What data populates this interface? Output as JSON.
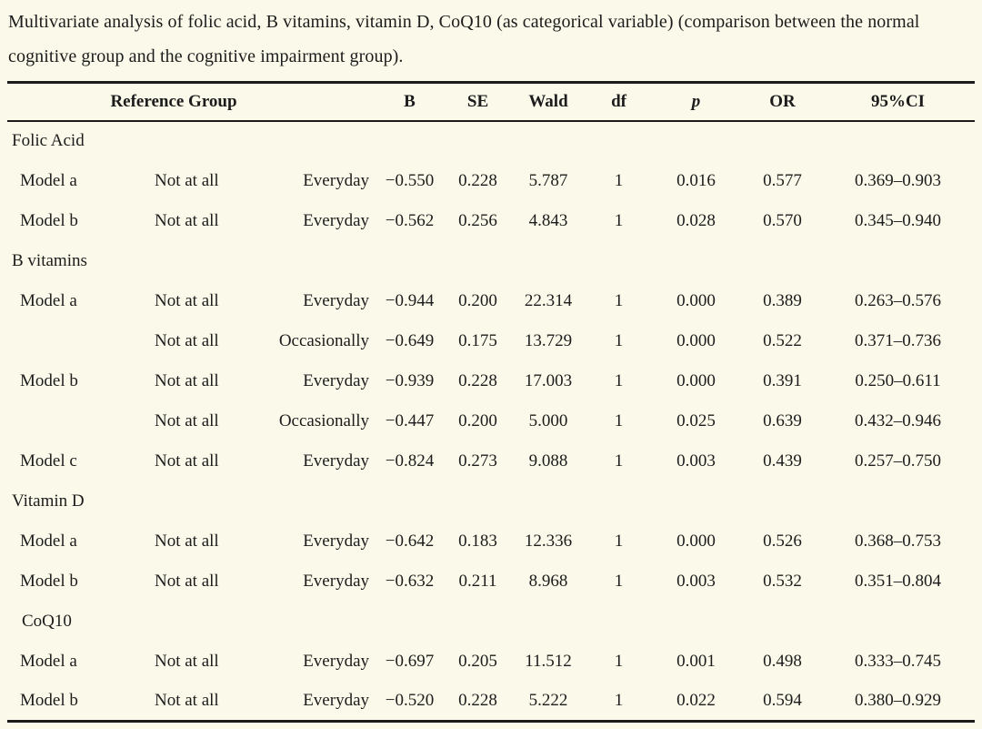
{
  "caption": "Multivariate analysis of folic acid, B vitamins, vitamin D, CoQ10 (as categorical variable) (comparison between the normal cognitive group and the cognitive impairment group).",
  "colors": {
    "page_background": "#fbf9e9",
    "text": "#1c1c1c",
    "rule": "#1c1c1c"
  },
  "table": {
    "header": {
      "reference_group": "Reference Group",
      "b": "B",
      "se": "SE",
      "wald": "Wald",
      "df": "df",
      "p": "p",
      "or": "OR",
      "ci": "95%CI"
    },
    "rows": [
      {
        "type": "section",
        "label": "Folic Acid"
      },
      {
        "type": "data",
        "label": "Model a",
        "ref": "Not at all",
        "comp": "Everyday",
        "b": "−0.550",
        "se": "0.228",
        "wald": "5.787",
        "df": "1",
        "p": "0.016",
        "or": "0.577",
        "ci": "0.369–0.903"
      },
      {
        "type": "data",
        "label": "Model b",
        "ref": "Not at all",
        "comp": "Everyday",
        "b": "−0.562",
        "se": "0.256",
        "wald": "4.843",
        "df": "1",
        "p": "0.028",
        "or": "0.570",
        "ci": "0.345–0.940"
      },
      {
        "type": "section",
        "label": "B vitamins"
      },
      {
        "type": "data",
        "label": "Model a",
        "ref": "Not at all",
        "comp": "Everyday",
        "b": "−0.944",
        "se": "0.200",
        "wald": "22.314",
        "df": "1",
        "p": "0.000",
        "or": "0.389",
        "ci": "0.263–0.576"
      },
      {
        "type": "data",
        "label": "",
        "ref": "Not at all",
        "comp": "Occasionally",
        "b": "−0.649",
        "se": "0.175",
        "wald": "13.729",
        "df": "1",
        "p": "0.000",
        "or": "0.522",
        "ci": "0.371–0.736"
      },
      {
        "type": "data",
        "label": "Model b",
        "ref": "Not at all",
        "comp": "Everyday",
        "b": "−0.939",
        "se": "0.228",
        "wald": "17.003",
        "df": "1",
        "p": "0.000",
        "or": "0.391",
        "ci": "0.250–0.611"
      },
      {
        "type": "data",
        "label": "",
        "ref": "Not at all",
        "comp": "Occasionally",
        "b": "−0.447",
        "se": "0.200",
        "wald": "5.000",
        "df": "1",
        "p": "0.025",
        "or": "0.639",
        "ci": "0.432–0.946"
      },
      {
        "type": "data",
        "label": "Model c",
        "ref": "Not at all",
        "comp": "Everyday",
        "b": "−0.824",
        "se": "0.273",
        "wald": "9.088",
        "df": "1",
        "p": "0.003",
        "or": "0.439",
        "ci": "0.257–0.750"
      },
      {
        "type": "section",
        "label": "Vitamin D"
      },
      {
        "type": "data",
        "label": "Model a",
        "ref": "Not at all",
        "comp": "Everyday",
        "b": "−0.642",
        "se": "0.183",
        "wald": "12.336",
        "df": "1",
        "p": "0.000",
        "or": "0.526",
        "ci": "0.368–0.753"
      },
      {
        "type": "data",
        "label": "Model b",
        "ref": "Not at all",
        "comp": "Everyday",
        "b": "−0.632",
        "se": "0.211",
        "wald": "8.968",
        "df": "1",
        "p": "0.003",
        "or": "0.532",
        "ci": "0.351–0.804"
      },
      {
        "type": "section",
        "label": "CoQ10",
        "indent": true
      },
      {
        "type": "data",
        "label": "Model a",
        "ref": "Not at all",
        "comp": "Everyday",
        "b": "−0.697",
        "se": "0.205",
        "wald": "11.512",
        "df": "1",
        "p": "0.001",
        "or": "0.498",
        "ci": "0.333–0.745"
      },
      {
        "type": "data",
        "label": "Model b",
        "ref": "Not at all",
        "comp": "Everyday",
        "b": "−0.520",
        "se": "0.228",
        "wald": "5.222",
        "df": "1",
        "p": "0.022",
        "or": "0.594",
        "ci": "0.380–0.929"
      }
    ]
  }
}
